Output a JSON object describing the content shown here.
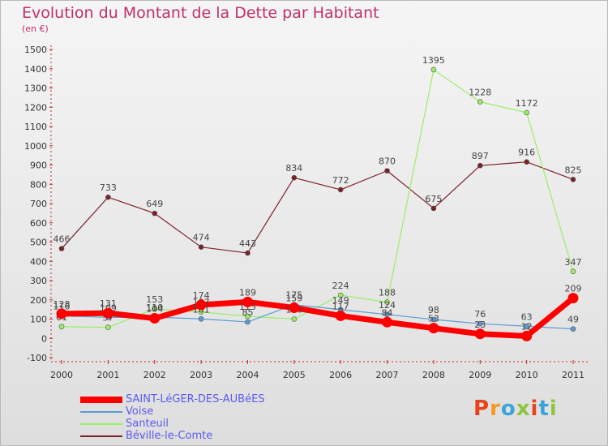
{
  "header": {
    "title": "Evolution du Montant de la Dette par Habitant",
    "subtitle": "(en €)"
  },
  "logo": {
    "text": "Proxiti",
    "colors": [
      "#e8431a",
      "#f39a1e",
      "#3aa3d8",
      "#8bc53f",
      "#e8431a",
      "#3aa3d8",
      "#8bc53f"
    ]
  },
  "chart_data": {
    "type": "line",
    "x": [
      "2000",
      "2001",
      "2002",
      "2003",
      "2004",
      "2005",
      "2006",
      "2007",
      "2008",
      "2009",
      "2010",
      "2011"
    ],
    "ylim": [
      -100,
      1500
    ],
    "yticks": [
      -100,
      0,
      100,
      200,
      300,
      400,
      500,
      600,
      700,
      800,
      900,
      1000,
      1100,
      1200,
      1300,
      1400,
      1500
    ],
    "grid": false,
    "legend_position": "bottom-left",
    "series": [
      {
        "name": "SAINT-LéGER-DES-AUBéES",
        "color": "#ff0000",
        "values": [
          128,
          131,
          104,
          174,
          189,
          159,
          117,
          84,
          53,
          23,
          12,
          209
        ],
        "labels": [
          "128",
          "131",
          "104",
          "174",
          "189",
          "159",
          "117",
          "84",
          "53",
          "23",
          "12",
          "209"
        ]
      },
      {
        "name": "Voise",
        "color": "#5b9bd5",
        "values": [
          116,
          109,
          110,
          101,
          85,
          175,
          149,
          124,
          98,
          76,
          63,
          49
        ],
        "labels": [
          "116",
          "109",
          "110",
          "101",
          "85",
          "175",
          "149",
          "124",
          "98",
          "76",
          "63",
          "49"
        ]
      },
      {
        "name": "Santeuil",
        "color": "#99ee66",
        "values": [
          61,
          57,
          153,
          137,
          115,
          100,
          224,
          188,
          1395,
          1228,
          1172,
          347
        ],
        "labels": [
          "61",
          "57",
          "153",
          "137",
          "115",
          "100",
          "224",
          "188",
          "1395",
          "1228",
          "1172",
          "347"
        ]
      },
      {
        "name": "Béville-le-Comte",
        "color": "#7a2228",
        "values": [
          466,
          733,
          649,
          474,
          443,
          834,
          772,
          870,
          675,
          897,
          916,
          825
        ],
        "labels": [
          "466",
          "733",
          "649",
          "474",
          "443",
          "834",
          "772",
          "870",
          "675",
          "897",
          "916",
          "825"
        ]
      }
    ]
  }
}
